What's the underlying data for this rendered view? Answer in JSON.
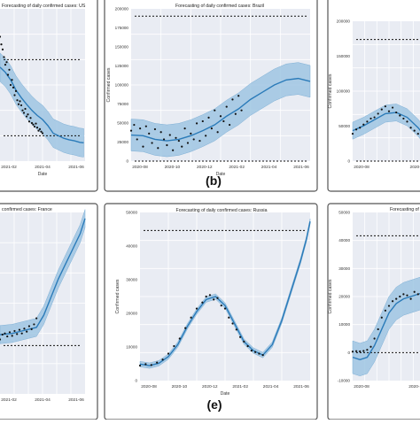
{
  "colors": {
    "band": "#9fc5e2",
    "band_edge": "#7fb0d6",
    "forecast_line": "#2b7bb9",
    "points": "#111111",
    "panel_bg": "#e9ecf3",
    "grid": "#ffffff",
    "frame": "#555555",
    "dashed": "#111111"
  },
  "chart_data": [
    {
      "id": "a",
      "type": "scatter",
      "panel_label": "",
      "title": "Forecasting of daily confirmed cases: US",
      "xlabel": "Date",
      "ylabel": "",
      "xticks": [
        "2021-02",
        "2021-04",
        "2021-06"
      ],
      "yticks": [],
      "ylim": [
        0,
        300000
      ],
      "ref_lines": [
        200000,
        50000
      ],
      "fit_line": [
        [
          0,
          185000
        ],
        [
          4,
          175000
        ],
        [
          8,
          160000
        ],
        [
          12,
          140000
        ],
        [
          16,
          125000
        ],
        [
          20,
          112000
        ],
        [
          24,
          100000
        ],
        [
          28,
          90000
        ],
        [
          32,
          82000
        ],
        [
          36,
          70000
        ],
        [
          40,
          55000
        ],
        [
          44,
          50000
        ],
        [
          48,
          45000
        ],
        [
          52,
          42000
        ],
        [
          56,
          40000
        ],
        [
          60,
          37000
        ],
        [
          63,
          36000
        ]
      ],
      "band_width": 28000,
      "observed": [
        [
          0,
          245000
        ],
        [
          1,
          230000
        ],
        [
          2,
          220000
        ],
        [
          3,
          205000
        ],
        [
          4,
          190000
        ],
        [
          5,
          195000
        ],
        [
          6,
          170000
        ],
        [
          7,
          180000
        ],
        [
          8,
          150000
        ],
        [
          9,
          160000
        ],
        [
          10,
          145000
        ],
        [
          11,
          130000
        ],
        [
          12,
          138000
        ],
        [
          13,
          120000
        ],
        [
          14,
          112000
        ],
        [
          15,
          118000
        ],
        [
          16,
          110000
        ],
        [
          17,
          100000
        ],
        [
          18,
          95000
        ],
        [
          19,
          103000
        ],
        [
          20,
          88000
        ],
        [
          21,
          92000
        ],
        [
          22,
          78000
        ],
        [
          23,
          85000
        ],
        [
          24,
          75000
        ],
        [
          25,
          72000
        ],
        [
          26,
          68000
        ],
        [
          27,
          74000
        ],
        [
          28,
          66000
        ],
        [
          29,
          60000
        ],
        [
          30,
          63000
        ],
        [
          31,
          58000
        ],
        [
          32,
          55000
        ]
      ]
    },
    {
      "id": "b",
      "type": "scatter",
      "panel_label": "(b)",
      "title": "Forecasting of daily confirmed cases: Brazil",
      "xlabel": "Date",
      "ylabel": "Confirmed cases",
      "xticks": [
        "2020-08",
        "2020-10",
        "2020-12",
        "2021-02",
        "2021-04",
        "2021-06"
      ],
      "yticks": [
        "0",
        "25000",
        "50000",
        "75000",
        "100000",
        "125000",
        "150000",
        "175000",
        "200000"
      ],
      "ylim": [
        0,
        210000
      ],
      "ref_lines": [
        200000,
        0
      ],
      "fit_line": [
        [
          0,
          36000
        ],
        [
          8,
          35000
        ],
        [
          16,
          30000
        ],
        [
          24,
          28000
        ],
        [
          32,
          30000
        ],
        [
          40,
          35000
        ],
        [
          48,
          42000
        ],
        [
          56,
          50000
        ],
        [
          64,
          62000
        ],
        [
          72,
          72000
        ],
        [
          80,
          85000
        ],
        [
          88,
          95000
        ],
        [
          96,
          105000
        ],
        [
          104,
          112000
        ],
        [
          112,
          114000
        ],
        [
          120,
          110000
        ]
      ],
      "band_width": 22000,
      "observed": [
        [
          0,
          42000
        ],
        [
          2,
          50000
        ],
        [
          4,
          30000
        ],
        [
          6,
          45000
        ],
        [
          8,
          20000
        ],
        [
          10,
          48000
        ],
        [
          12,
          38000
        ],
        [
          14,
          25000
        ],
        [
          16,
          44000
        ],
        [
          18,
          18000
        ],
        [
          20,
          40000
        ],
        [
          22,
          30000
        ],
        [
          24,
          22000
        ],
        [
          26,
          36000
        ],
        [
          28,
          15000
        ],
        [
          30,
          32000
        ],
        [
          32,
          28000
        ],
        [
          34,
          20000
        ],
        [
          36,
          45000
        ],
        [
          38,
          25000
        ],
        [
          40,
          38000
        ],
        [
          42,
          30000
        ],
        [
          44,
          52000
        ],
        [
          46,
          28000
        ],
        [
          48,
          55000
        ],
        [
          50,
          35000
        ],
        [
          52,
          60000
        ],
        [
          54,
          45000
        ],
        [
          56,
          70000
        ],
        [
          58,
          40000
        ],
        [
          60,
          62000
        ],
        [
          62,
          55000
        ],
        [
          64,
          75000
        ],
        [
          66,
          50000
        ],
        [
          68,
          85000
        ],
        [
          70,
          65000
        ],
        [
          72,
          90000
        ],
        [
          74,
          70000
        ]
      ]
    },
    {
      "id": "c",
      "type": "scatter",
      "panel_label": "",
      "title": "",
      "xlabel": "",
      "ylabel": "Confirmed cases",
      "xticks": [
        "2020-08",
        "2020-1"
      ],
      "yticks": [
        "0",
        "50000",
        "100000",
        "150000",
        "200000"
      ],
      "ylim": [
        0,
        230000
      ],
      "ref_lines": [
        200000,
        0
      ],
      "fit_line": [
        [
          0,
          50000
        ],
        [
          6,
          58000
        ],
        [
          12,
          68000
        ],
        [
          18,
          78000
        ],
        [
          24,
          80000
        ],
        [
          30,
          72000
        ],
        [
          36,
          55000
        ],
        [
          40,
          40000
        ]
      ],
      "band_width": 14000,
      "observed": [
        [
          0,
          45000
        ],
        [
          2,
          52000
        ],
        [
          4,
          55000
        ],
        [
          6,
          60000
        ],
        [
          8,
          65000
        ],
        [
          10,
          70000
        ],
        [
          12,
          72000
        ],
        [
          14,
          78000
        ],
        [
          16,
          85000
        ],
        [
          18,
          90000
        ],
        [
          20,
          82000
        ],
        [
          22,
          88000
        ],
        [
          24,
          80000
        ],
        [
          26,
          75000
        ],
        [
          28,
          70000
        ],
        [
          30,
          65000
        ],
        [
          32,
          55000
        ],
        [
          34,
          50000
        ],
        [
          36,
          45000
        ],
        [
          38,
          38000
        ],
        [
          40,
          35000
        ]
      ]
    },
    {
      "id": "d",
      "type": "scatter",
      "panel_label": "",
      "title": "confirmed cases: France",
      "xlabel": "",
      "ylabel": "",
      "xticks": [
        "2021-02",
        "2021-04",
        "2021-06"
      ],
      "yticks": [],
      "ylim": [
        0,
        300000
      ],
      "ref_lines": [
        80000
      ],
      "fit_line": [
        [
          0,
          98000
        ],
        [
          10,
          100000
        ],
        [
          20,
          105000
        ],
        [
          30,
          110000
        ],
        [
          36,
          130000
        ],
        [
          42,
          160000
        ],
        [
          48,
          190000
        ],
        [
          54,
          215000
        ],
        [
          60,
          240000
        ],
        [
          66,
          265000
        ],
        [
          70,
          290000
        ]
      ],
      "band_width": 15000,
      "observed": [
        [
          0,
          90000
        ],
        [
          2,
          98000
        ],
        [
          4,
          100000
        ],
        [
          6,
          95000
        ],
        [
          8,
          102000
        ],
        [
          10,
          96000
        ],
        [
          12,
          104000
        ],
        [
          14,
          99000
        ],
        [
          16,
          106000
        ],
        [
          18,
          100000
        ],
        [
          20,
          108000
        ],
        [
          22,
          103000
        ],
        [
          24,
          112000
        ],
        [
          26,
          107000
        ],
        [
          28,
          115000
        ],
        [
          30,
          125000
        ]
      ]
    },
    {
      "id": "e",
      "type": "scatter",
      "panel_label": "(e)",
      "title": "Forecasting of daily confirmed cases: Russia",
      "xlabel": "Date",
      "ylabel": "Confirmed cases",
      "xticks": [
        "2020-08",
        "2020-10",
        "2020-12",
        "2021-02",
        "2021-04",
        "2021-06"
      ],
      "yticks": [
        "0",
        "10000",
        "20000",
        "30000",
        "40000",
        "50000"
      ],
      "ylim": [
        0,
        56000
      ],
      "ref_lines": [
        50000
      ],
      "fit_line": [
        [
          0,
          5500
        ],
        [
          5,
          5000
        ],
        [
          10,
          5800
        ],
        [
          15,
          8000
        ],
        [
          20,
          12000
        ],
        [
          25,
          18000
        ],
        [
          30,
          23000
        ],
        [
          35,
          27000
        ],
        [
          40,
          28000
        ],
        [
          45,
          25000
        ],
        [
          50,
          19000
        ],
        [
          55,
          13000
        ],
        [
          60,
          10000
        ],
        [
          65,
          8500
        ],
        [
          70,
          12000
        ],
        [
          75,
          20000
        ],
        [
          80,
          30000
        ],
        [
          85,
          40000
        ],
        [
          88,
          47000
        ],
        [
          90,
          53000
        ]
      ],
      "band_width": 900,
      "observed": [
        [
          0,
          5000
        ],
        [
          3,
          5500
        ],
        [
          6,
          5200
        ],
        [
          9,
          6000
        ],
        [
          12,
          7000
        ],
        [
          15,
          9000
        ],
        [
          18,
          11500
        ],
        [
          21,
          14000
        ],
        [
          24,
          17500
        ],
        [
          27,
          21000
        ],
        [
          30,
          24000
        ],
        [
          33,
          26000
        ],
        [
          35,
          28000
        ],
        [
          37,
          28500
        ],
        [
          39,
          27000
        ],
        [
          41,
          27500
        ],
        [
          43,
          25000
        ],
        [
          45,
          24000
        ],
        [
          47,
          21000
        ],
        [
          49,
          19000
        ],
        [
          51,
          17000
        ],
        [
          53,
          14500
        ],
        [
          55,
          13000
        ],
        [
          57,
          11500
        ],
        [
          59,
          10000
        ],
        [
          61,
          9500
        ],
        [
          63,
          9000
        ],
        [
          65,
          8500
        ]
      ]
    },
    {
      "id": "f",
      "type": "scatter",
      "panel_label": "",
      "title": "Forecasting of d",
      "xlabel": "",
      "ylabel": "Confirmed cases",
      "xticks": [
        "2020-08",
        "2020-10"
      ],
      "yticks": [
        "-10000",
        "0",
        "10000",
        "20000",
        "30000",
        "40000",
        "50000"
      ],
      "ylim": [
        -12000,
        60000
      ],
      "ref_lines": [
        50000,
        0
      ],
      "fit_line": [
        [
          0,
          -2000
        ],
        [
          4,
          -3000
        ],
        [
          8,
          -2000
        ],
        [
          12,
          3000
        ],
        [
          16,
          10000
        ],
        [
          20,
          17000
        ],
        [
          24,
          21000
        ],
        [
          28,
          23000
        ],
        [
          32,
          24000
        ],
        [
          36,
          25000
        ],
        [
          40,
          26000
        ]
      ],
      "band_width": 7000,
      "observed": [
        [
          0,
          400
        ],
        [
          2,
          600
        ],
        [
          4,
          500
        ],
        [
          6,
          700
        ],
        [
          8,
          1200
        ],
        [
          10,
          2500
        ],
        [
          12,
          6000
        ],
        [
          14,
          10000
        ],
        [
          16,
          15000
        ],
        [
          18,
          18000
        ],
        [
          20,
          20000
        ],
        [
          22,
          22000
        ],
        [
          24,
          23000
        ],
        [
          26,
          24000
        ],
        [
          28,
          25000
        ],
        [
          30,
          24500
        ],
        [
          32,
          23000
        ],
        [
          34,
          26000
        ],
        [
          36,
          25000
        ],
        [
          38,
          24000
        ]
      ]
    }
  ]
}
